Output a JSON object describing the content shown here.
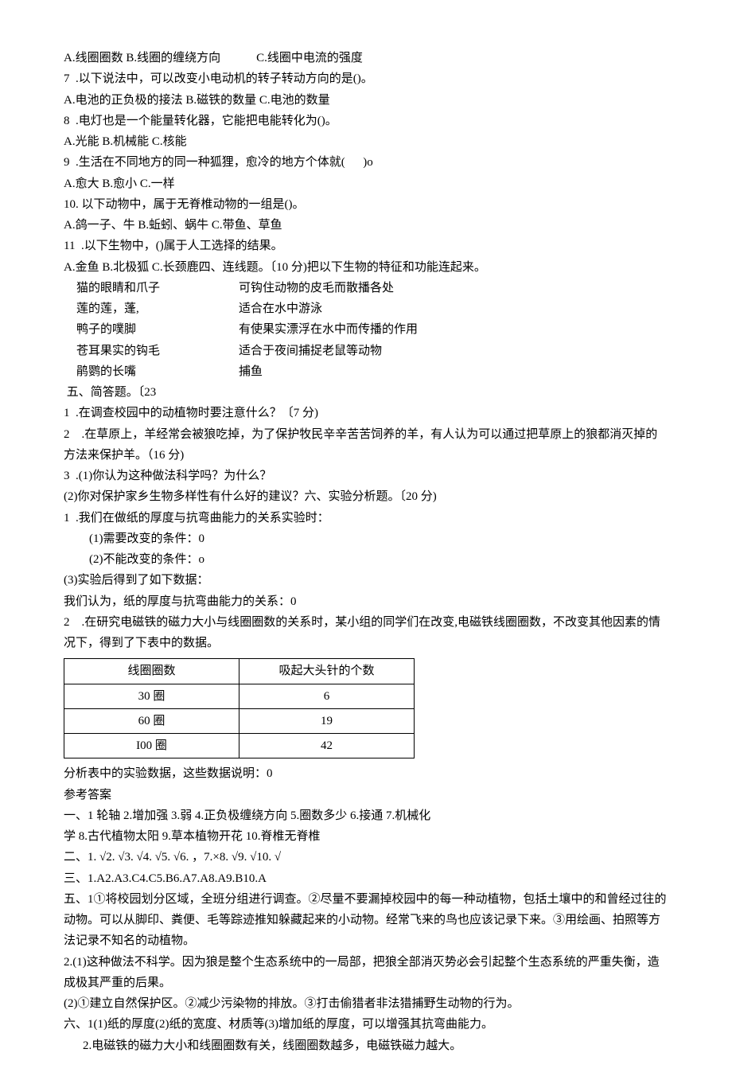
{
  "q6_options": "A.线圈圈数 B.线圈的缠绕方向            C.线圈中电流的强度",
  "q7": "7  .以下说法中，可以改变小电动机的转子转动方向的是()。",
  "q7_options": "A.电池的正负极的接法 B.磁铁的数量 C.电池的数量",
  "q8": "8  .电灯也是一个能量转化器，它能把电能转化为()。",
  "q8_options": "A.光能 B.机械能 C.核能",
  "q9": "9  .生活在不同地方的同一种狐狸，愈冷的地方个体就(      )o",
  "q9_options": "A.愈大 B.愈小 C.一样",
  "q10": "10. 以下动物中，属于无脊椎动物的一组是()。",
  "q10_options": "A.鸽一子、牛 B.蚯蚓、蜗牛 C.带鱼、草鱼",
  "q11": "11  .以下生物中，()属于人工选择的结果。",
  "q11_options": "A.金鱼 B.北极狐 C.长颈鹿四、连线题。〔10 分)把以下生物的特征和功能连起来。",
  "match": [
    {
      "left": "猫的眼睛和爪子",
      "right": "可钩住动物的皮毛而散播各处"
    },
    {
      "left": "莲的莲，蓬,",
      "right": "适合在水中游泳"
    },
    {
      "left": "鸭子的噗脚",
      "right": "有使果实漂浮在水中而传播的作用"
    },
    {
      "left": "苍耳果实的钩毛",
      "right": "适合于夜间捕捉老鼠等动物"
    },
    {
      "left": "鹃鹦的长嘴",
      "right": "捕鱼"
    }
  ],
  "sec5_title": " 五、简答题。〔23",
  "sec5_q1": "1  .在调查校园中的动植物时要注意什么？〔7 分)",
  "sec5_q2": "2    .在草原上，羊经常会被狼吃掉，为了保护牧民辛辛苦苦饲养的羊，有人认为可以通过把草原上的狼都消灭掉的方法来保护羊。（16 分)",
  "sec5_q3": "3  .(1)你认为这种做法科学吗？为什么？",
  "sec5_q3b": "(2)你对保护家乡生物多样性有什么好的建议？六、实验分析题。〔20 分)",
  "sec6_q1": "1  .我们在做纸的厚度与抗弯曲能力的关系实验时：",
  "sec6_q1a": "(1)需要改变的条件：0",
  "sec6_q1b": "(2)不能改变的条件：o",
  "sec6_q1c": "(3)实验后得到了如下数据：",
  "sec6_q1d": "我们认为，纸的厚度与抗弯曲能力的关系：0",
  "sec6_q2": "2    .在研究电磁铁的磁力大小与线圈圈数的关系时，某小组的同学们在改变,电磁铁线圈圈数，不改变其他因素的情况下，得到了下表中的数据。",
  "table": {
    "headers": [
      "线圈圈数",
      "吸起大头针的个数"
    ],
    "rows": [
      [
        "30 圈",
        "6"
      ],
      [
        "60 圈",
        "19"
      ],
      [
        "I00 圈",
        "42"
      ]
    ]
  },
  "analysis": "分析表中的实验数据，这些数据说明：0",
  "ans_title": "参考答案",
  "ans1": "一、1 轮轴 2.增加强 3.弱 4.正负极缠绕方向 5.圈数多少 6.接通 7.机械化",
  "ans1b": "学 8.古代植物太阳 9.草本植物开花 10.脊椎无脊椎",
  "ans2": "二、1. √2. √3. √4. √5. √6. ，7.×8. √9. √10. √",
  "ans3": "三、1.A2.A3.C4.C5.B6.A7.A8.A9.B10.A",
  "ans5": "五、1①将校园划分区域，全班分组进行调查。②尽量不要漏掉校园中的每一种动植物，包括土壤中的和曾经过往的动物。可以从脚印、粪便、毛等踪迹推知躲藏起来的小动物。经常飞来的鸟也应该记录下来。③用绘画、拍照等方法记录不知名的动植物。",
  "ans5_2": "2.(1)这种做法不科学。因为狼是整个生态系统中的一局部，把狼全部消灭势必会引起整个生态系统的严重失衡，造成极其严重的后果。",
  "ans5_2b": "(2)①建立自然保护区。②减少污染物的排放。③打击偷猎者非法猎捕野生动物的行为。",
  "ans6": "六、1(1)纸的厚度(2)纸的宽度、材质等(3)增加纸的厚度，可以增强其抗弯曲能力。",
  "ans6_2": "2.电磁铁的磁力大小和线圈圈数有关，线圈圈数越多，电磁铁磁力越大。"
}
